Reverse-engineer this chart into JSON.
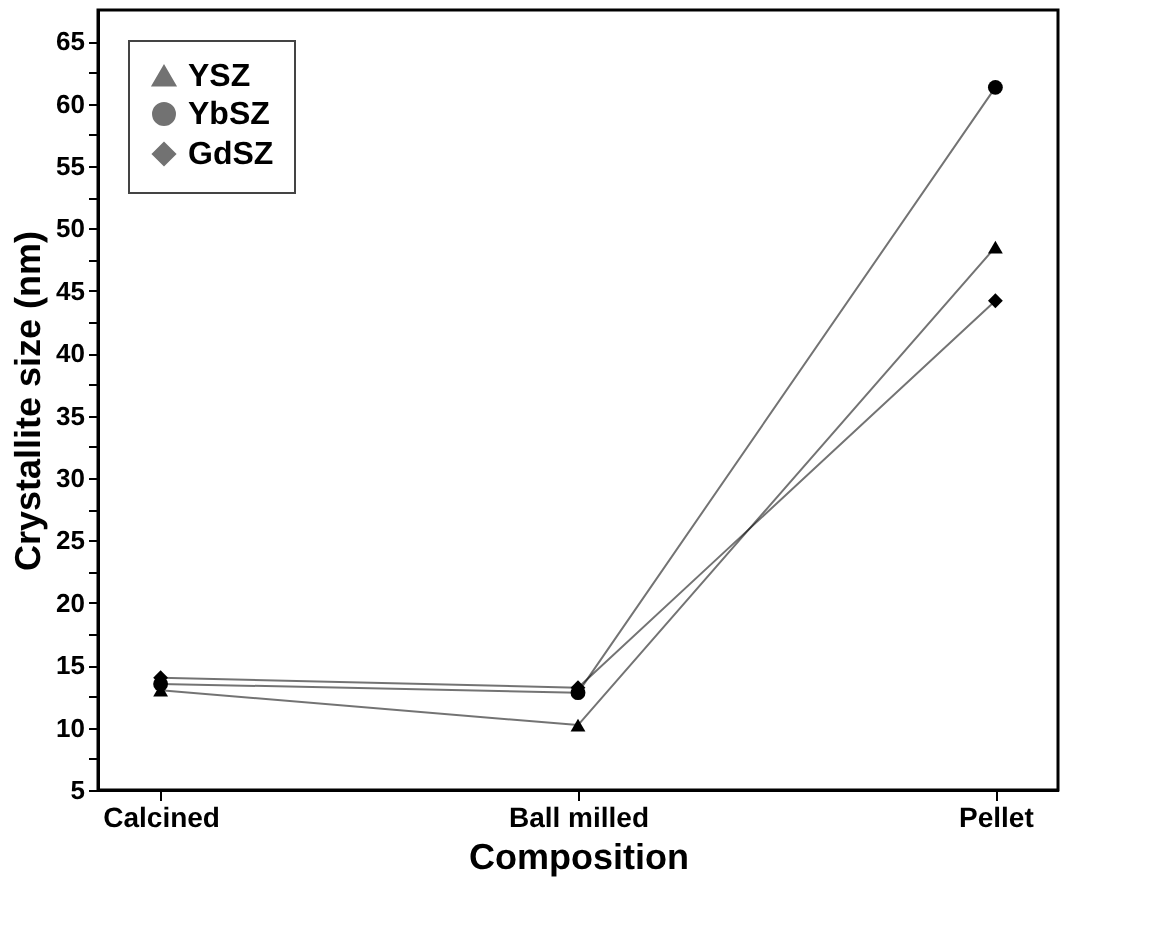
{
  "chart_data": {
    "type": "line",
    "xlabel": "Composition",
    "ylabel": "Crystallite size (nm)",
    "categories": [
      "Calcined",
      "Ball milled",
      "Pellet"
    ],
    "series": [
      {
        "name": "YSZ",
        "color": "#000000",
        "marker": "triangle",
        "values": [
          13,
          10.2,
          48.5
        ]
      },
      {
        "name": "YbSZ",
        "color": "#000000",
        "marker": "circle",
        "values": [
          13.5,
          12.8,
          61.3
        ]
      },
      {
        "name": "GdSZ",
        "color": "#000000",
        "marker": "diamond",
        "values": [
          14,
          13.2,
          44.2
        ]
      }
    ],
    "ylim": [
      5,
      67.5
    ],
    "yticks": [
      5,
      {
        "value": 7.5,
        "label": null
      },
      10,
      {
        "value": 12.5,
        "label": null
      },
      15,
      {
        "value": 17.5,
        "label": null
      },
      20,
      {
        "value": 22.5,
        "label": null
      },
      25,
      {
        "value": 27.5,
        "label": null
      },
      30,
      {
        "value": 32.5,
        "label": null
      },
      35,
      {
        "value": 37.5,
        "label": null
      },
      40,
      {
        "value": 42.5,
        "label": null
      },
      45,
      {
        "value": 47.5,
        "label": null
      },
      50,
      {
        "value": 52.5,
        "label": null
      },
      55,
      {
        "value": 57.5,
        "label": null
      },
      60,
      {
        "value": 62.5,
        "label": null
      },
      65
    ],
    "grid": false,
    "legend": "top left",
    "line_style": "solid"
  }
}
